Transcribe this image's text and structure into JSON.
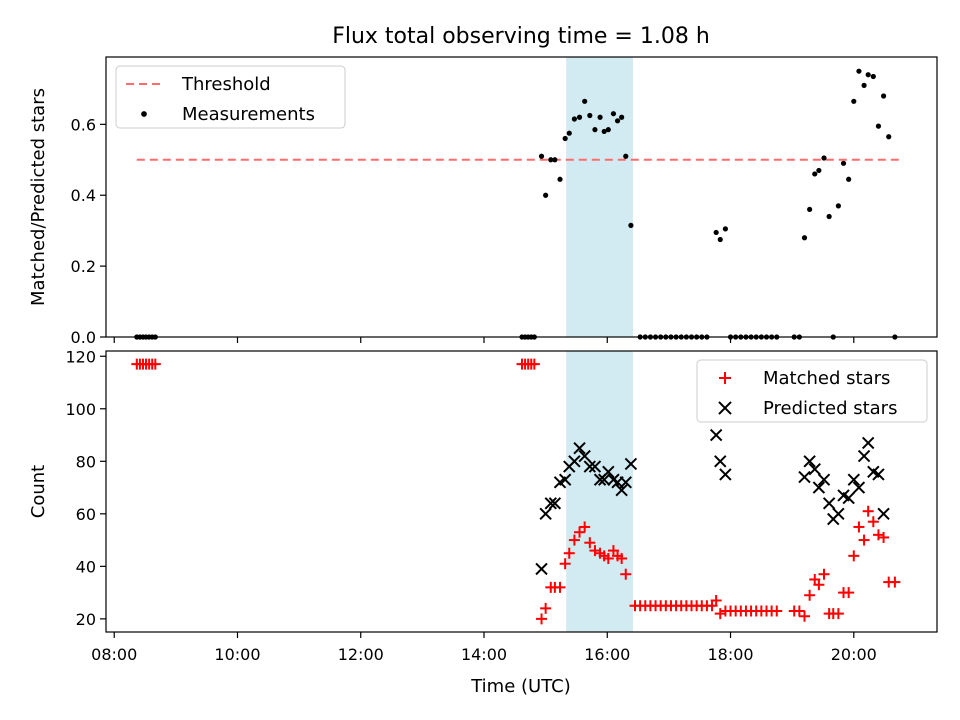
{
  "chart_data": {
    "type": "scatter",
    "title": "Flux total observing time = 1.08 h",
    "xlabel": "Time (UTC)",
    "x_ticks": [
      "08:00",
      "10:00",
      "12:00",
      "14:00",
      "16:00",
      "18:00",
      "20:00"
    ],
    "x_range": [
      "07:52",
      "21:21"
    ],
    "highlight_band": {
      "start": "15:20",
      "end": "16:25",
      "color": "#add8e6"
    },
    "panels": [
      {
        "ylabel": "Matched/Predicted stars",
        "ylim": [
          0,
          0.79
        ],
        "y_ticks": [
          0.0,
          0.2,
          0.4,
          0.6
        ],
        "legend_position": "upper-left",
        "threshold": {
          "name": "Threshold",
          "value": 0.5,
          "x_start": "08:22",
          "x_end": "20:45",
          "color": "#ff6b6b"
        },
        "series": [
          {
            "name": "Measurements",
            "color": "#000000",
            "marker": "dot",
            "points": [
              [
                "08:22",
                0
              ],
              [
                "08:25",
                0
              ],
              [
                "08:28",
                0
              ],
              [
                "08:31",
                0
              ],
              [
                "08:34",
                0
              ],
              [
                "08:37",
                0
              ],
              [
                "08:40",
                0
              ],
              [
                "14:37",
                0
              ],
              [
                "14:40",
                0
              ],
              [
                "14:43",
                0
              ],
              [
                "14:46",
                0
              ],
              [
                "14:49",
                0
              ],
              [
                "14:56",
                0.51
              ],
              [
                "15:00",
                0.4
              ],
              [
                "15:05",
                0.5
              ],
              [
                "15:09",
                0.5
              ],
              [
                "15:14",
                0.445
              ],
              [
                "15:19",
                0.56
              ],
              [
                "15:23",
                0.575
              ],
              [
                "15:28",
                0.615
              ],
              [
                "15:33",
                0.62
              ],
              [
                "15:38",
                0.665
              ],
              [
                "15:43",
                0.625
              ],
              [
                "15:48",
                0.585
              ],
              [
                "15:53",
                0.62
              ],
              [
                "15:57",
                0.58
              ],
              [
                "16:01",
                0.585
              ],
              [
                "16:06",
                0.63
              ],
              [
                "16:10",
                0.61
              ],
              [
                "16:14",
                0.62
              ],
              [
                "16:18",
                0.51
              ],
              [
                "16:23",
                0.315
              ],
              [
                "16:32",
                0
              ],
              [
                "16:37",
                0
              ],
              [
                "16:42",
                0
              ],
              [
                "16:47",
                0
              ],
              [
                "16:52",
                0
              ],
              [
                "16:57",
                0
              ],
              [
                "17:02",
                0
              ],
              [
                "17:07",
                0
              ],
              [
                "17:12",
                0
              ],
              [
                "17:17",
                0
              ],
              [
                "17:22",
                0
              ],
              [
                "17:27",
                0
              ],
              [
                "17:32",
                0
              ],
              [
                "17:37",
                0
              ],
              [
                "17:46",
                0.295
              ],
              [
                "17:50",
                0.275
              ],
              [
                "17:55",
                0.305
              ],
              [
                "18:00",
                0
              ],
              [
                "18:05",
                0
              ],
              [
                "18:10",
                0
              ],
              [
                "18:15",
                0
              ],
              [
                "18:20",
                0
              ],
              [
                "18:25",
                0
              ],
              [
                "18:30",
                0
              ],
              [
                "18:35",
                0
              ],
              [
                "18:40",
                0
              ],
              [
                "18:45",
                0
              ],
              [
                "19:02",
                0
              ],
              [
                "19:07",
                0
              ],
              [
                "19:12",
                0.28
              ],
              [
                "19:17",
                0.36
              ],
              [
                "19:22",
                0.46
              ],
              [
                "19:26",
                0.47
              ],
              [
                "19:31",
                0.505
              ],
              [
                "19:36",
                0.34
              ],
              [
                "19:40",
                0
              ],
              [
                "19:45",
                0.37
              ],
              [
                "19:50",
                0.49
              ],
              [
                "19:55",
                0.445
              ],
              [
                "20:00",
                0.665
              ],
              [
                "20:05",
                0.75
              ],
              [
                "20:10",
                0.71
              ],
              [
                "20:14",
                0.74
              ],
              [
                "20:19",
                0.735
              ],
              [
                "20:24",
                0.595
              ],
              [
                "20:29",
                0.68
              ],
              [
                "20:34",
                0.565
              ],
              [
                "20:40",
                0
              ]
            ]
          }
        ]
      },
      {
        "ylabel": "Count",
        "ylim": [
          15,
          122
        ],
        "y_ticks": [
          20,
          40,
          60,
          80,
          100,
          120
        ],
        "legend_position": "upper-right",
        "series": [
          {
            "name": "Matched stars",
            "color": "#ff0000",
            "marker": "plus",
            "points": [
              [
                "08:22",
                117
              ],
              [
                "08:25",
                117
              ],
              [
                "08:28",
                117
              ],
              [
                "08:31",
                117
              ],
              [
                "08:34",
                117
              ],
              [
                "08:37",
                117
              ],
              [
                "08:40",
                117
              ],
              [
                "14:37",
                117
              ],
              [
                "14:40",
                117
              ],
              [
                "14:43",
                117
              ],
              [
                "14:46",
                117
              ],
              [
                "14:49",
                117
              ],
              [
                "14:56",
                20
              ],
              [
                "15:00",
                24
              ],
              [
                "15:05",
                32
              ],
              [
                "15:09",
                32
              ],
              [
                "15:14",
                32
              ],
              [
                "15:19",
                41
              ],
              [
                "15:23",
                45
              ],
              [
                "15:28",
                50
              ],
              [
                "15:33",
                53
              ],
              [
                "15:38",
                55
              ],
              [
                "15:43",
                49
              ],
              [
                "15:48",
                46
              ],
              [
                "15:53",
                45
              ],
              [
                "15:57",
                44
              ],
              [
                "16:01",
                43
              ],
              [
                "16:06",
                46
              ],
              [
                "16:10",
                44
              ],
              [
                "16:14",
                43
              ],
              [
                "16:18",
                37
              ],
              [
                "16:27",
                25
              ],
              [
                "16:32",
                25
              ],
              [
                "16:37",
                25
              ],
              [
                "16:42",
                25
              ],
              [
                "16:47",
                25
              ],
              [
                "16:52",
                25
              ],
              [
                "16:57",
                25
              ],
              [
                "17:02",
                25
              ],
              [
                "17:07",
                25
              ],
              [
                "17:12",
                25
              ],
              [
                "17:17",
                25
              ],
              [
                "17:22",
                25
              ],
              [
                "17:27",
                25
              ],
              [
                "17:32",
                25
              ],
              [
                "17:37",
                25
              ],
              [
                "17:42",
                25
              ],
              [
                "17:46",
                27
              ],
              [
                "17:50",
                22
              ],
              [
                "17:55",
                23
              ],
              [
                "18:00",
                23
              ],
              [
                "18:05",
                23
              ],
              [
                "18:10",
                23
              ],
              [
                "18:15",
                23
              ],
              [
                "18:20",
                23
              ],
              [
                "18:25",
                23
              ],
              [
                "18:30",
                23
              ],
              [
                "18:35",
                23
              ],
              [
                "18:40",
                23
              ],
              [
                "18:45",
                23
              ],
              [
                "19:02",
                23
              ],
              [
                "19:07",
                23
              ],
              [
                "19:12",
                21
              ],
              [
                "19:17",
                29
              ],
              [
                "19:22",
                35
              ],
              [
                "19:26",
                33
              ],
              [
                "19:31",
                37
              ],
              [
                "19:36",
                22
              ],
              [
                "19:40",
                22
              ],
              [
                "19:45",
                22
              ],
              [
                "19:50",
                30
              ],
              [
                "19:55",
                30
              ],
              [
                "20:00",
                44
              ],
              [
                "20:05",
                55
              ],
              [
                "20:10",
                50
              ],
              [
                "20:14",
                61
              ],
              [
                "20:19",
                57
              ],
              [
                "20:24",
                52
              ],
              [
                "20:29",
                51
              ],
              [
                "20:34",
                34
              ],
              [
                "20:40",
                34
              ]
            ]
          },
          {
            "name": "Predicted stars",
            "color": "#000000",
            "marker": "x",
            "points": [
              [
                "14:56",
                39
              ],
              [
                "15:00",
                60
              ],
              [
                "15:05",
                64
              ],
              [
                "15:09",
                64
              ],
              [
                "15:14",
                72
              ],
              [
                "15:19",
                73
              ],
              [
                "15:23",
                78
              ],
              [
                "15:28",
                80
              ],
              [
                "15:33",
                85
              ],
              [
                "15:38",
                82
              ],
              [
                "15:43",
                78
              ],
              [
                "15:48",
                78
              ],
              [
                "15:53",
                73
              ],
              [
                "15:57",
                73
              ],
              [
                "16:01",
                76
              ],
              [
                "16:06",
                73
              ],
              [
                "16:10",
                72
              ],
              [
                "16:14",
                69
              ],
              [
                "16:18",
                72
              ],
              [
                "16:23",
                79
              ],
              [
                "17:46",
                90
              ],
              [
                "17:50",
                80
              ],
              [
                "17:55",
                75
              ],
              [
                "19:12",
                74
              ],
              [
                "19:17",
                80
              ],
              [
                "19:22",
                77
              ],
              [
                "19:26",
                70
              ],
              [
                "19:31",
                73
              ],
              [
                "19:36",
                64
              ],
              [
                "19:40",
                58
              ],
              [
                "19:45",
                60
              ],
              [
                "19:50",
                67
              ],
              [
                "19:55",
                66
              ],
              [
                "20:00",
                73
              ],
              [
                "20:05",
                70
              ],
              [
                "20:10",
                82
              ],
              [
                "20:14",
                87
              ],
              [
                "20:19",
                76
              ],
              [
                "20:24",
                75
              ],
              [
                "20:29",
                60
              ]
            ]
          }
        ]
      }
    ]
  }
}
